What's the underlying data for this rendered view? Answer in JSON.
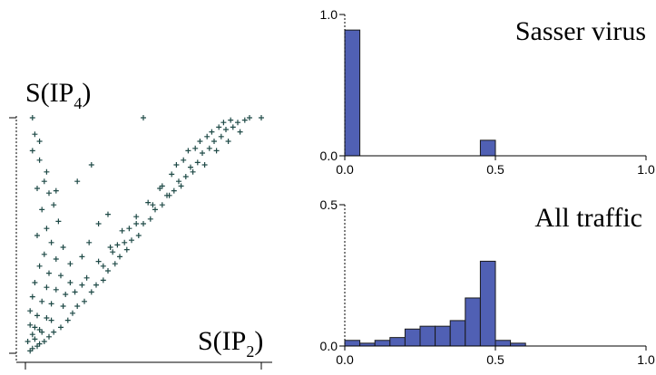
{
  "colors": {
    "scatter": "#1f4a47",
    "bar_fill": "#5060b4",
    "bar_stroke": "#1a1a1a",
    "axis": "#000000"
  },
  "chart_data": [
    {
      "type": "scatter",
      "xlabel_main": "S(IP",
      "xlabel_sub": "2",
      "ylabel_main": "S(IP",
      "ylabel_sub": "4",
      "xlim": [
        0,
        1
      ],
      "ylim": [
        0,
        1
      ],
      "xticks": [
        0,
        1
      ],
      "yticks": [
        0,
        1
      ],
      "tick_labels_shown": false,
      "marker": "plus",
      "points": [
        [
          0.02,
          0.01
        ],
        [
          0.03,
          0.02
        ],
        [
          0.05,
          0.03
        ],
        [
          0.04,
          0.06
        ],
        [
          0.06,
          0.04
        ],
        [
          0.08,
          0.05
        ],
        [
          0.1,
          0.07
        ],
        [
          0.07,
          0.09
        ],
        [
          0.12,
          0.09
        ],
        [
          0.15,
          0.11
        ],
        [
          0.11,
          0.14
        ],
        [
          0.18,
          0.14
        ],
        [
          0.2,
          0.17
        ],
        [
          0.16,
          0.2
        ],
        [
          0.22,
          0.2
        ],
        [
          0.25,
          0.22
        ],
        [
          0.21,
          0.26
        ],
        [
          0.28,
          0.26
        ],
        [
          0.3,
          0.29
        ],
        [
          0.26,
          0.32
        ],
        [
          0.33,
          0.31
        ],
        [
          0.35,
          0.35
        ],
        [
          0.31,
          0.39
        ],
        [
          0.38,
          0.38
        ],
        [
          0.4,
          0.41
        ],
        [
          0.36,
          0.45
        ],
        [
          0.43,
          0.44
        ],
        [
          0.45,
          0.48
        ],
        [
          0.41,
          0.52
        ],
        [
          0.48,
          0.5
        ],
        [
          0.5,
          0.55
        ],
        [
          0.47,
          0.58
        ],
        [
          0.53,
          0.57
        ],
        [
          0.55,
          0.61
        ],
        [
          0.52,
          0.64
        ],
        [
          0.58,
          0.63
        ],
        [
          0.6,
          0.67
        ],
        [
          0.57,
          0.7
        ],
        [
          0.63,
          0.69
        ],
        [
          0.65,
          0.73
        ],
        [
          0.62,
          0.76
        ],
        [
          0.68,
          0.75
        ],
        [
          0.7,
          0.79
        ],
        [
          0.67,
          0.82
        ],
        [
          0.73,
          0.81
        ],
        [
          0.75,
          0.85
        ],
        [
          0.72,
          0.87
        ],
        [
          0.78,
          0.87
        ],
        [
          0.8,
          0.9
        ],
        [
          0.77,
          0.92
        ],
        [
          0.83,
          0.92
        ],
        [
          0.85,
          0.95
        ],
        [
          0.82,
          0.96
        ],
        [
          0.88,
          0.96
        ],
        [
          0.9,
          0.98
        ],
        [
          0.87,
          0.99
        ],
        [
          0.93,
          0.99
        ],
        [
          0.95,
          1.0
        ],
        [
          1.0,
          1.0
        ],
        [
          0.03,
          1.0
        ],
        [
          0.04,
          0.93
        ],
        [
          0.06,
          0.9
        ],
        [
          0.03,
          0.86
        ],
        [
          0.06,
          0.82
        ],
        [
          0.09,
          0.77
        ],
        [
          0.08,
          0.73
        ],
        [
          0.05,
          0.7
        ],
        [
          0.1,
          0.68
        ],
        [
          0.13,
          0.69
        ],
        [
          0.12,
          0.63
        ],
        [
          0.07,
          0.61
        ],
        [
          0.14,
          0.56
        ],
        [
          0.09,
          0.53
        ],
        [
          0.05,
          0.5
        ],
        [
          0.11,
          0.47
        ],
        [
          0.16,
          0.45
        ],
        [
          0.08,
          0.42
        ],
        [
          0.13,
          0.4
        ],
        [
          0.06,
          0.37
        ],
        [
          0.19,
          0.38
        ],
        [
          0.1,
          0.34
        ],
        [
          0.15,
          0.33
        ],
        [
          0.04,
          0.3
        ],
        [
          0.09,
          0.28
        ],
        [
          0.13,
          0.27
        ],
        [
          0.03,
          0.24
        ],
        [
          0.07,
          0.22
        ],
        [
          0.11,
          0.21
        ],
        [
          0.02,
          0.18
        ],
        [
          0.05,
          0.16
        ],
        [
          0.09,
          0.15
        ],
        [
          0.02,
          0.12
        ],
        [
          0.04,
          0.11
        ],
        [
          0.06,
          0.1
        ],
        [
          0.03,
          0.08
        ],
        [
          0.01,
          0.05
        ],
        [
          0.5,
          1.0
        ],
        [
          0.22,
          0.73
        ],
        [
          0.28,
          0.8
        ],
        [
          0.35,
          0.59
        ],
        [
          0.27,
          0.47
        ],
        [
          0.31,
          0.55
        ],
        [
          0.24,
          0.41
        ],
        [
          0.19,
          0.3
        ],
        [
          0.17,
          0.25
        ],
        [
          0.24,
          0.29
        ],
        [
          0.39,
          0.46
        ],
        [
          0.44,
          0.53
        ],
        [
          0.58,
          0.71
        ],
        [
          0.64,
          0.8
        ],
        [
          0.69,
          0.86
        ],
        [
          0.74,
          0.9
        ],
        [
          0.79,
          0.94
        ],
        [
          0.84,
          0.98
        ],
        [
          0.54,
          0.63
        ],
        [
          0.47,
          0.55
        ],
        [
          0.33,
          0.37
        ],
        [
          0.37,
          0.43
        ],
        [
          0.42,
          0.47
        ],
        [
          0.61,
          0.67
        ],
        [
          0.66,
          0.71
        ],
        [
          0.71,
          0.77
        ],
        [
          0.76,
          0.8
        ],
        [
          0.81,
          0.86
        ],
        [
          0.86,
          0.9
        ],
        [
          0.91,
          0.94
        ]
      ]
    },
    {
      "type": "bar",
      "title": "Sasser virus",
      "xlim": [
        0,
        1
      ],
      "ylim": [
        0,
        1
      ],
      "xticks": [
        0,
        0.5,
        1
      ],
      "xtick_labels": [
        "0.0",
        "0.5",
        "1.0"
      ],
      "yticks": [
        0,
        1
      ],
      "ytick_labels": [
        "0.0",
        "1.0"
      ],
      "bin_width": 0.05,
      "bins": [
        0.0,
        0.45
      ],
      "values": [
        0.89,
        0.11
      ]
    },
    {
      "type": "bar",
      "title": "All traffic",
      "xlim": [
        0,
        1
      ],
      "ylim": [
        0,
        0.5
      ],
      "xticks": [
        0,
        0.5,
        1
      ],
      "xtick_labels": [
        "0.0",
        "0.5",
        "1.0"
      ],
      "yticks": [
        0,
        0.5
      ],
      "ytick_labels": [
        "0.0",
        "0.5"
      ],
      "bin_width": 0.05,
      "bins": [
        0.0,
        0.05,
        0.1,
        0.15,
        0.2,
        0.25,
        0.3,
        0.35,
        0.4,
        0.45,
        0.5,
        0.55
      ],
      "values": [
        0.02,
        0.01,
        0.02,
        0.03,
        0.06,
        0.07,
        0.07,
        0.09,
        0.17,
        0.3,
        0.02,
        0.01
      ]
    }
  ]
}
